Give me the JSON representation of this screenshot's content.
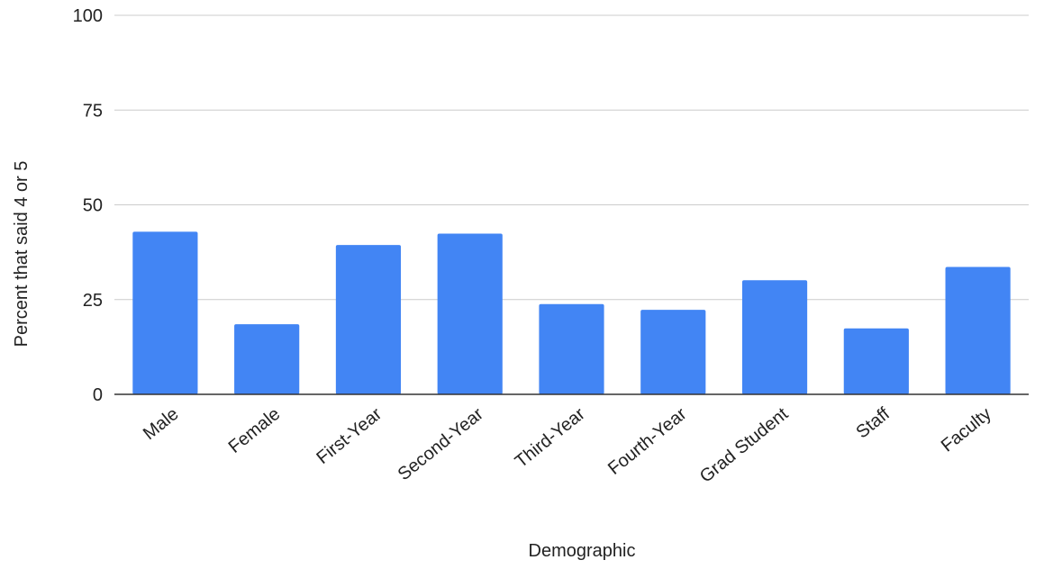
{
  "chart_data": {
    "type": "bar",
    "title": "",
    "xlabel": "Demographic",
    "ylabel": "Percent that said 4 or 5",
    "ylim": [
      0,
      100
    ],
    "yticks": [
      "0",
      "25",
      "50",
      "75",
      "100"
    ],
    "grid": true,
    "legend": "none",
    "bar_color": "#4285f4",
    "categories": [
      "Male",
      "Female",
      "First-Year",
      "Second-Year",
      "Third-Year",
      "Fourth-Year",
      "Grad Student",
      "Staff",
      "Faculty"
    ],
    "values": [
      42.9,
      18.5,
      39.4,
      42.4,
      23.8,
      22.3,
      30.1,
      17.4,
      33.6
    ]
  }
}
